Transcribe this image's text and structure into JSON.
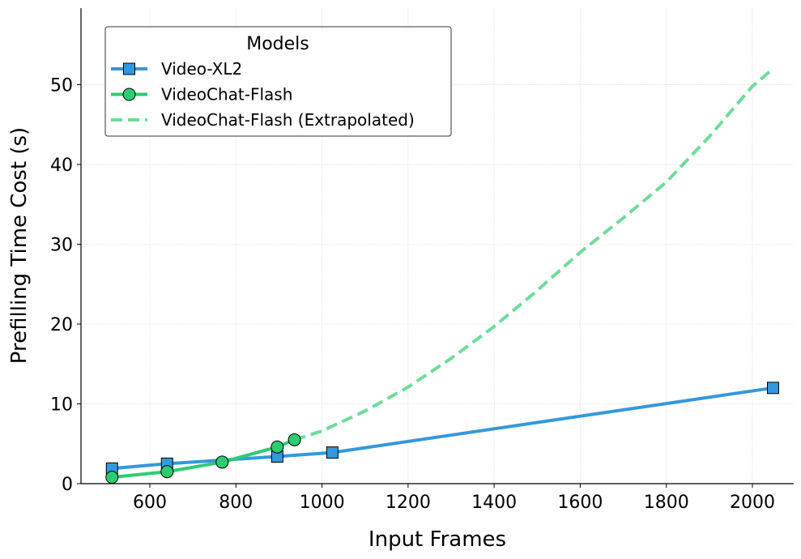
{
  "chart_data": {
    "type": "line",
    "title": "",
    "xlabel": "Input Frames",
    "ylabel": "Prefilling Time Cost (s)",
    "xlim": [
      440,
      2096
    ],
    "ylim": [
      0,
      59.6
    ],
    "xticks": [
      600,
      800,
      1000,
      1200,
      1400,
      1600,
      1800,
      2000
    ],
    "yticks": [
      0,
      10,
      20,
      30,
      40,
      50
    ],
    "grid": true,
    "legend": {
      "title": "Models",
      "placement": "top-left"
    },
    "series": [
      {
        "name": "Video-XL2",
        "color": "#3498db",
        "marker": "square",
        "style": "solid",
        "x": [
          512,
          640,
          896,
          1024,
          2048
        ],
        "y": [
          1.9,
          2.5,
          3.4,
          3.9,
          12.0
        ]
      },
      {
        "name": "VideoChat-Flash",
        "color": "#2ecc71",
        "marker": "circle",
        "style": "solid",
        "x": [
          512,
          640,
          768,
          896,
          936
        ],
        "y": [
          0.8,
          1.5,
          2.7,
          4.6,
          5.5
        ]
      },
      {
        "name": "VideoChat-Flash (Extrapolated)",
        "color": "#6fdc9a",
        "marker": "none",
        "style": "dashed",
        "x": [
          936,
          1000,
          1100,
          1200,
          1300,
          1400,
          1500,
          1600,
          1700,
          1800,
          1900,
          2000,
          2048
        ],
        "y": [
          5.5,
          6.6,
          9.1,
          12.1,
          15.7,
          19.7,
          24.2,
          29.0,
          33.3,
          37.8,
          43.5,
          49.8,
          52.0
        ]
      }
    ]
  }
}
